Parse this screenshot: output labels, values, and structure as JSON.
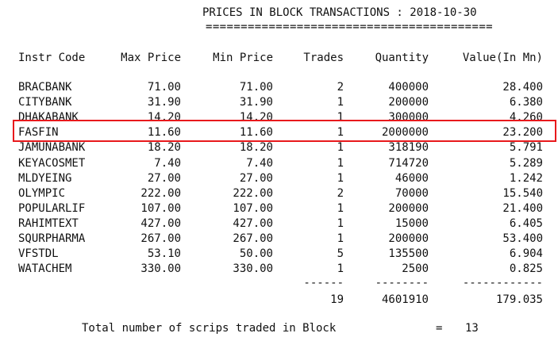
{
  "report": {
    "title": "PRICES IN BLOCK TRANSACTIONS : 2018-10-30",
    "underline": "========================================="
  },
  "columns": [
    "Instr Code",
    "Max Price",
    "Min Price",
    "Trades",
    "Quantity",
    "Value(In Mn)"
  ],
  "rows": [
    [
      "BRACBANK",
      "71.00",
      "71.00",
      "2",
      "400000",
      "28.400"
    ],
    [
      "CITYBANK",
      "31.90",
      "31.90",
      "1",
      "200000",
      "6.380"
    ],
    [
      "DHAKABANK",
      "14.20",
      "14.20",
      "1",
      "300000",
      "4.260"
    ],
    [
      "FASFIN",
      "11.60",
      "11.60",
      "1",
      "2000000",
      "23.200"
    ],
    [
      "JAMUNABANK",
      "18.20",
      "18.20",
      "1",
      "318190",
      "5.791"
    ],
    [
      "KEYACOSMET",
      "7.40",
      "7.40",
      "1",
      "714720",
      "5.289"
    ],
    [
      "MLDYEING",
      "27.00",
      "27.00",
      "1",
      "46000",
      "1.242"
    ],
    [
      "OLYMPIC",
      "222.00",
      "222.00",
      "2",
      "70000",
      "15.540"
    ],
    [
      "POPULARLIF",
      "107.00",
      "107.00",
      "1",
      "200000",
      "21.400"
    ],
    [
      "RAHIMTEXT",
      "427.00",
      "427.00",
      "1",
      "15000",
      "6.405"
    ],
    [
      "SQURPHARMA",
      "267.00",
      "267.00",
      "1",
      "200000",
      "53.400"
    ],
    [
      "VFSTDL",
      "53.10",
      "50.00",
      "5",
      "135500",
      "6.904"
    ],
    [
      "WATACHEM",
      "330.00",
      "330.00",
      "1",
      "2500",
      "0.825"
    ]
  ],
  "separators": {
    "trades": "------",
    "quantity": "--------",
    "value": "------------"
  },
  "totals": {
    "trades": "19",
    "quantity": "4601910",
    "value": "179.035"
  },
  "footer": {
    "label": "Total number of scrips traded in Block",
    "equals": "=",
    "count": "13"
  },
  "highlighted_row": "FASFIN",
  "colors": {
    "highlight_border": "#e8191c",
    "text": "#111111",
    "background": "#ffffff"
  }
}
